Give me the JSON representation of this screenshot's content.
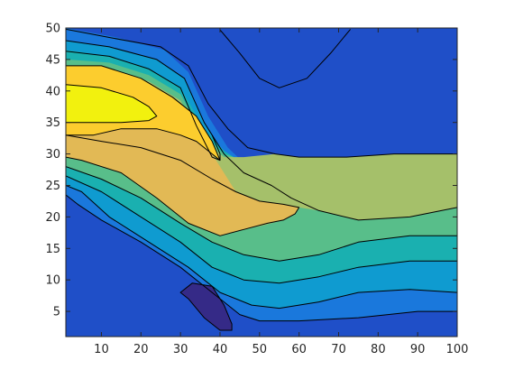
{
  "chart_data": {
    "type": "heatmap",
    "subtype": "filled-contour",
    "title": "",
    "xlabel": "",
    "ylabel": "",
    "xlim": [
      1,
      100
    ],
    "ylim": [
      1,
      50
    ],
    "grid": false,
    "legend": "none",
    "x_ticks": [
      10,
      20,
      30,
      40,
      50,
      60,
      70,
      80,
      90,
      100
    ],
    "x_tick_labels": [
      "10",
      "20",
      "30",
      "40",
      "50",
      "60",
      "70",
      "80",
      "90",
      "100"
    ],
    "y_ticks": [
      5,
      10,
      15,
      20,
      25,
      30,
      35,
      40,
      45,
      50
    ],
    "y_tick_labels": [
      "5",
      "10",
      "15",
      "20",
      "25",
      "30",
      "35",
      "40",
      "45",
      "50"
    ],
    "colormap": "parula",
    "level_colors": [
      "#352a87",
      "#1f4fc8",
      "#1a78dc",
      "#0f9bd0",
      "#1ab0b0",
      "#58be8a",
      "#a5c06a",
      "#e2b955",
      "#fccd2e",
      "#f2f10e"
    ],
    "regions": [
      {
        "level": 0,
        "description": "low pocket",
        "points": [
          [
            30,
            8
          ],
          [
            33,
            9.5
          ],
          [
            38,
            9
          ],
          [
            41,
            6
          ],
          [
            43,
            3
          ],
          [
            43,
            2
          ],
          [
            40,
            2
          ],
          [
            36,
            4
          ],
          [
            32,
            7
          ]
        ]
      },
      {
        "level": 8,
        "description": "upper-left high ridge",
        "points": [
          [
            1,
            44
          ],
          [
            10,
            44
          ],
          [
            20,
            42
          ],
          [
            28,
            39
          ],
          [
            34,
            36
          ],
          [
            38,
            32
          ],
          [
            40,
            29
          ],
          [
            38,
            30
          ],
          [
            34,
            32
          ],
          [
            30,
            33
          ],
          [
            24,
            34
          ],
          [
            15,
            34
          ],
          [
            8,
            33
          ],
          [
            1,
            33
          ]
        ]
      },
      {
        "level": 9,
        "description": "peak",
        "points": [
          [
            1,
            41
          ],
          [
            10,
            40.5
          ],
          [
            18,
            39
          ],
          [
            22,
            37.5
          ],
          [
            24,
            36
          ],
          [
            22,
            35.3
          ],
          [
            15,
            35
          ],
          [
            8,
            35
          ],
          [
            1,
            35
          ]
        ]
      }
    ],
    "contour_lines": [
      {
        "points": [
          [
            1,
            49.8
          ],
          [
            12,
            48.5
          ],
          [
            25,
            47
          ],
          [
            32,
            44
          ],
          [
            37,
            38
          ],
          [
            42,
            34
          ],
          [
            47,
            31
          ],
          [
            54,
            30
          ],
          [
            60,
            29.5
          ],
          [
            72,
            29.5
          ],
          [
            84,
            30
          ],
          [
            100,
            30
          ]
        ]
      },
      {
        "points": [
          [
            1,
            48
          ],
          [
            12,
            47
          ],
          [
            24,
            45
          ],
          [
            31,
            42
          ],
          [
            36,
            35
          ],
          [
            41,
            30
          ],
          [
            46,
            27
          ],
          [
            53,
            25
          ],
          [
            58,
            23
          ],
          [
            65,
            21
          ],
          [
            75,
            19.5
          ],
          [
            88,
            20
          ],
          [
            100,
            21.5
          ]
        ]
      },
      {
        "points": [
          [
            1,
            46.3
          ],
          [
            12,
            45.5
          ],
          [
            22,
            43.5
          ],
          [
            30,
            40.5
          ],
          [
            34,
            34.5
          ],
          [
            38,
            29.5
          ],
          [
            40,
            29
          ],
          [
            40,
            30
          ],
          [
            38,
            33
          ]
        ]
      },
      {
        "points": [
          [
            1,
            33
          ],
          [
            10,
            32
          ],
          [
            20,
            31
          ],
          [
            30,
            29
          ],
          [
            38,
            26
          ],
          [
            44,
            24
          ],
          [
            50,
            22.5
          ],
          [
            56,
            22
          ],
          [
            60,
            21.5
          ],
          [
            59,
            20.5
          ],
          [
            56,
            19.5
          ],
          [
            52,
            19
          ],
          [
            46,
            18
          ],
          [
            40,
            17
          ],
          [
            32,
            19
          ],
          [
            24,
            23
          ],
          [
            15,
            27
          ],
          [
            5,
            29
          ],
          [
            1,
            29.5
          ]
        ]
      },
      {
        "points": [
          [
            1,
            28
          ],
          [
            10,
            26
          ],
          [
            20,
            23
          ],
          [
            30,
            19
          ],
          [
            38,
            16
          ],
          [
            46,
            14
          ],
          [
            55,
            13
          ],
          [
            65,
            14
          ],
          [
            75,
            16
          ],
          [
            88,
            17
          ],
          [
            100,
            17
          ]
        ]
      },
      {
        "points": [
          [
            1,
            26.5
          ],
          [
            10,
            24
          ],
          [
            20,
            20
          ],
          [
            30,
            16
          ],
          [
            38,
            12
          ],
          [
            46,
            10
          ],
          [
            55,
            9.5
          ],
          [
            65,
            10.5
          ],
          [
            75,
            12
          ],
          [
            88,
            13
          ],
          [
            100,
            13
          ]
        ]
      },
      {
        "points": [
          [
            1,
            25
          ],
          [
            5,
            24
          ],
          [
            12,
            20
          ],
          [
            22,
            16
          ],
          [
            32,
            12
          ],
          [
            40,
            8
          ],
          [
            48,
            6
          ],
          [
            55,
            5.5
          ],
          [
            65,
            6.5
          ],
          [
            75,
            8
          ],
          [
            88,
            8.5
          ],
          [
            100,
            8
          ]
        ]
      },
      {
        "points": [
          [
            1,
            23.5
          ],
          [
            4,
            22
          ],
          [
            10,
            19.5
          ],
          [
            20,
            16
          ],
          [
            30,
            12
          ],
          [
            38,
            8
          ],
          [
            45,
            4.5
          ],
          [
            50,
            3.5
          ],
          [
            60,
            3.5
          ],
          [
            75,
            4
          ],
          [
            90,
            5
          ],
          [
            100,
            5
          ]
        ]
      },
      {
        "points": [
          [
            40,
            49.7
          ],
          [
            45,
            46
          ],
          [
            50,
            42
          ],
          [
            55,
            40.5
          ],
          [
            62,
            42
          ],
          [
            68,
            46
          ],
          [
            73,
            49.8
          ]
        ]
      }
    ]
  }
}
